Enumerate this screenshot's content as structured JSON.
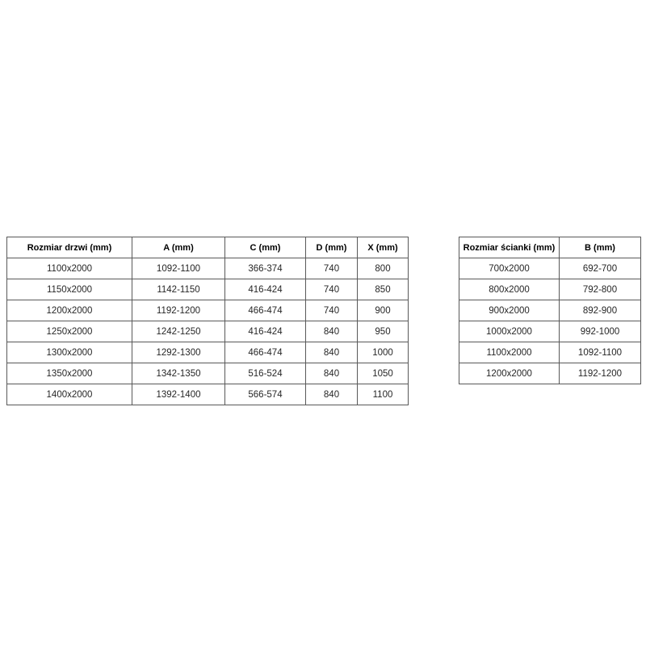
{
  "page": {
    "background_color": "#ffffff",
    "border_color": "#595959",
    "header_text_color": "#000000",
    "cell_text_color": "#262626"
  },
  "tables": [
    {
      "name": "door-size-table",
      "headers": [
        "Rozmiar drzwi (mm)",
        "A (mm)",
        "C (mm)",
        "D (mm)",
        "X (mm)"
      ],
      "rows": [
        [
          "1100x2000",
          "1092-1100",
          "366-374",
          "740",
          "800"
        ],
        [
          "1150x2000",
          "1142-1150",
          "416-424",
          "740",
          "850"
        ],
        [
          "1200x2000",
          "1192-1200",
          "466-474",
          "740",
          "900"
        ],
        [
          "1250x2000",
          "1242-1250",
          "416-424",
          "840",
          "950"
        ],
        [
          "1300x2000",
          "1292-1300",
          "466-474",
          "840",
          "1000"
        ],
        [
          "1350x2000",
          "1342-1350",
          "516-524",
          "840",
          "1050"
        ],
        [
          "1400x2000",
          "1392-1400",
          "566-574",
          "840",
          "1100"
        ]
      ]
    },
    {
      "name": "wall-size-table",
      "headers": [
        "Rozmiar ścianki (mm)",
        "B (mm)"
      ],
      "rows": [
        [
          "700x2000",
          "692-700"
        ],
        [
          "800x2000",
          "792-800"
        ],
        [
          "900x2000",
          "892-900"
        ],
        [
          "1000x2000",
          "992-1000"
        ],
        [
          "1100x2000",
          "1092-1100"
        ],
        [
          "1200x2000",
          "1192-1200"
        ]
      ]
    }
  ]
}
